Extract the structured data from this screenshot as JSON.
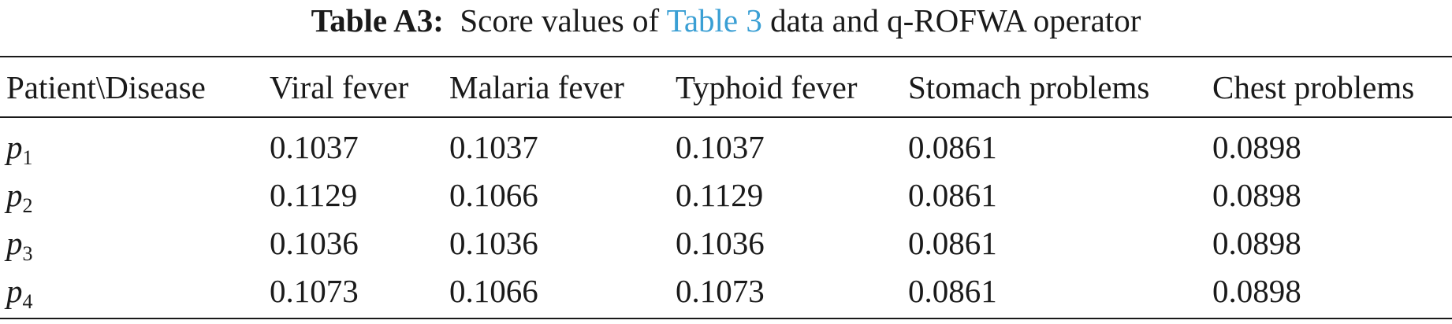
{
  "caption": {
    "label": "Table A3:",
    "text_before": "Score values of",
    "link": "Table 3",
    "text_after": "data and q-ROFWA operator"
  },
  "table": {
    "headers": [
      "Patient\\Disease",
      "Viral fever",
      "Malaria fever",
      "Typhoid fever",
      "Stomach problems",
      "Chest problems"
    ],
    "rows": [
      {
        "patient": "p",
        "sub": "1",
        "values": [
          "0.1037",
          "0.1037",
          "0.1037",
          "0.0861",
          "0.0898"
        ]
      },
      {
        "patient": "p",
        "sub": "2",
        "values": [
          "0.1129",
          "0.1066",
          "0.1129",
          "0.0861",
          "0.0898"
        ]
      },
      {
        "patient": "p",
        "sub": "3",
        "values": [
          "0.1036",
          "0.1036",
          "0.1036",
          "0.0861",
          "0.0898"
        ]
      },
      {
        "patient": "p",
        "sub": "4",
        "values": [
          "0.1073",
          "0.1066",
          "0.1073",
          "0.0861",
          "0.0898"
        ]
      }
    ]
  }
}
